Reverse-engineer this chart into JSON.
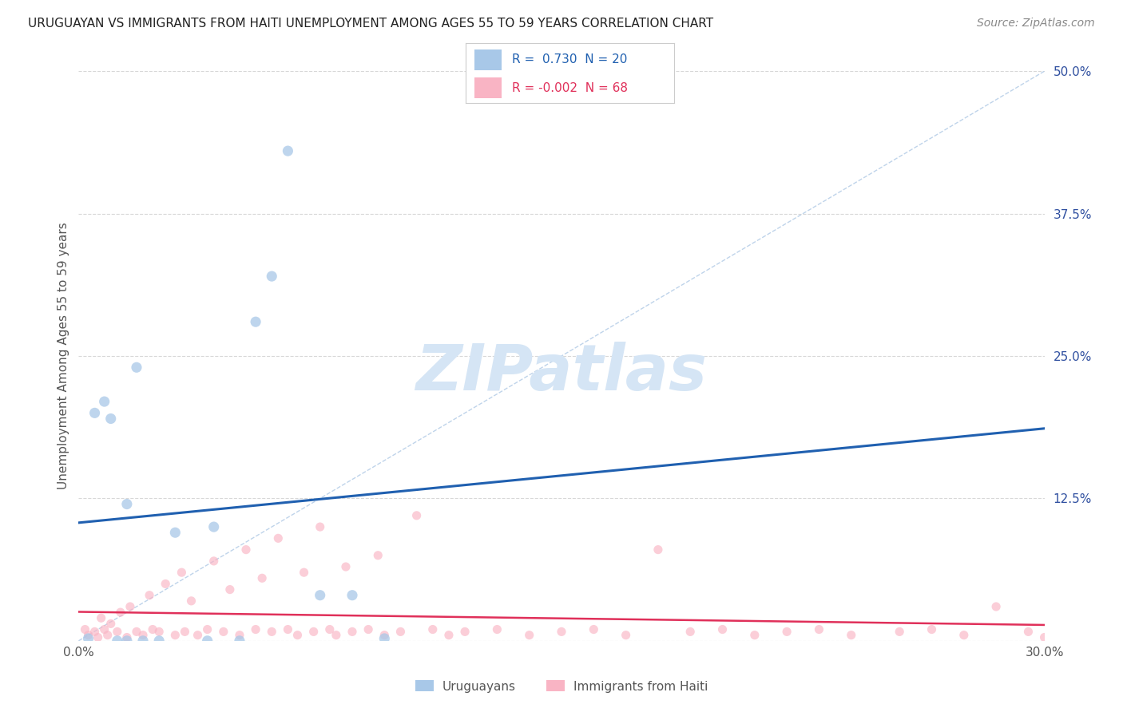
{
  "title": "URUGUAYAN VS IMMIGRANTS FROM HAITI UNEMPLOYMENT AMONG AGES 55 TO 59 YEARS CORRELATION CHART",
  "source": "Source: ZipAtlas.com",
  "ylabel": "Unemployment Among Ages 55 to 59 years",
  "xlim": [
    -0.003,
    0.305
  ],
  "ylim": [
    -0.02,
    0.52
  ],
  "plot_xlim": [
    0.0,
    0.3
  ],
  "plot_ylim": [
    0.0,
    0.5
  ],
  "xticks": [
    0.0,
    0.05,
    0.1,
    0.15,
    0.2,
    0.25,
    0.3
  ],
  "yticks": [
    0.0,
    0.125,
    0.25,
    0.375,
    0.5
  ],
  "watermark": "ZIPatlas",
  "legend_uruguayan": "Uruguayans",
  "legend_haiti": "Immigrants from Haiti",
  "R_uruguayan": 0.73,
  "N_uruguayan": 20,
  "R_haiti": -0.002,
  "N_haiti": 68,
  "uruguayan_x": [
    0.003,
    0.005,
    0.008,
    0.01,
    0.012,
    0.015,
    0.015,
    0.018,
    0.02,
    0.025,
    0.03,
    0.04,
    0.042,
    0.05,
    0.055,
    0.06,
    0.065,
    0.075,
    0.085,
    0.095
  ],
  "uruguayan_y": [
    0.002,
    0.2,
    0.21,
    0.195,
    0.0,
    0.0,
    0.12,
    0.24,
    0.0,
    0.0,
    0.095,
    0.0,
    0.1,
    0.0,
    0.28,
    0.32,
    0.43,
    0.04,
    0.04,
    0.002
  ],
  "haiti_x": [
    0.002,
    0.003,
    0.005,
    0.006,
    0.007,
    0.008,
    0.009,
    0.01,
    0.012,
    0.013,
    0.015,
    0.016,
    0.018,
    0.02,
    0.022,
    0.023,
    0.025,
    0.027,
    0.03,
    0.032,
    0.033,
    0.035,
    0.037,
    0.04,
    0.042,
    0.045,
    0.047,
    0.05,
    0.052,
    0.055,
    0.057,
    0.06,
    0.062,
    0.065,
    0.068,
    0.07,
    0.073,
    0.075,
    0.078,
    0.08,
    0.083,
    0.085,
    0.09,
    0.093,
    0.095,
    0.1,
    0.105,
    0.11,
    0.115,
    0.12,
    0.13,
    0.14,
    0.15,
    0.16,
    0.17,
    0.18,
    0.19,
    0.2,
    0.21,
    0.22,
    0.23,
    0.24,
    0.255,
    0.265,
    0.275,
    0.285,
    0.295,
    0.3
  ],
  "haiti_y": [
    0.01,
    0.005,
    0.008,
    0.003,
    0.02,
    0.01,
    0.005,
    0.015,
    0.008,
    0.025,
    0.003,
    0.03,
    0.008,
    0.005,
    0.04,
    0.01,
    0.008,
    0.05,
    0.005,
    0.06,
    0.008,
    0.035,
    0.005,
    0.01,
    0.07,
    0.008,
    0.045,
    0.005,
    0.08,
    0.01,
    0.055,
    0.008,
    0.09,
    0.01,
    0.005,
    0.06,
    0.008,
    0.1,
    0.01,
    0.005,
    0.065,
    0.008,
    0.01,
    0.075,
    0.005,
    0.008,
    0.11,
    0.01,
    0.005,
    0.008,
    0.01,
    0.005,
    0.008,
    0.01,
    0.005,
    0.08,
    0.008,
    0.01,
    0.005,
    0.008,
    0.01,
    0.005,
    0.008,
    0.01,
    0.005,
    0.03,
    0.008,
    0.003
  ],
  "blue_scatter_color": "#a8c8e8",
  "pink_scatter_color": "#f9b4c4",
  "blue_line_color": "#2060b0",
  "pink_line_color": "#e0305a",
  "ref_line_color": "#b8cfe8",
  "background_color": "#ffffff",
  "grid_color": "#d8d8d8",
  "ytick_color": "#3050a0",
  "xtick_color": "#555555",
  "title_fontsize": 11,
  "axis_label_fontsize": 11,
  "tick_fontsize": 11,
  "source_fontsize": 10,
  "watermark_color": "#d5e5f5",
  "watermark_fontsize": 58,
  "legend_fontsize": 11
}
